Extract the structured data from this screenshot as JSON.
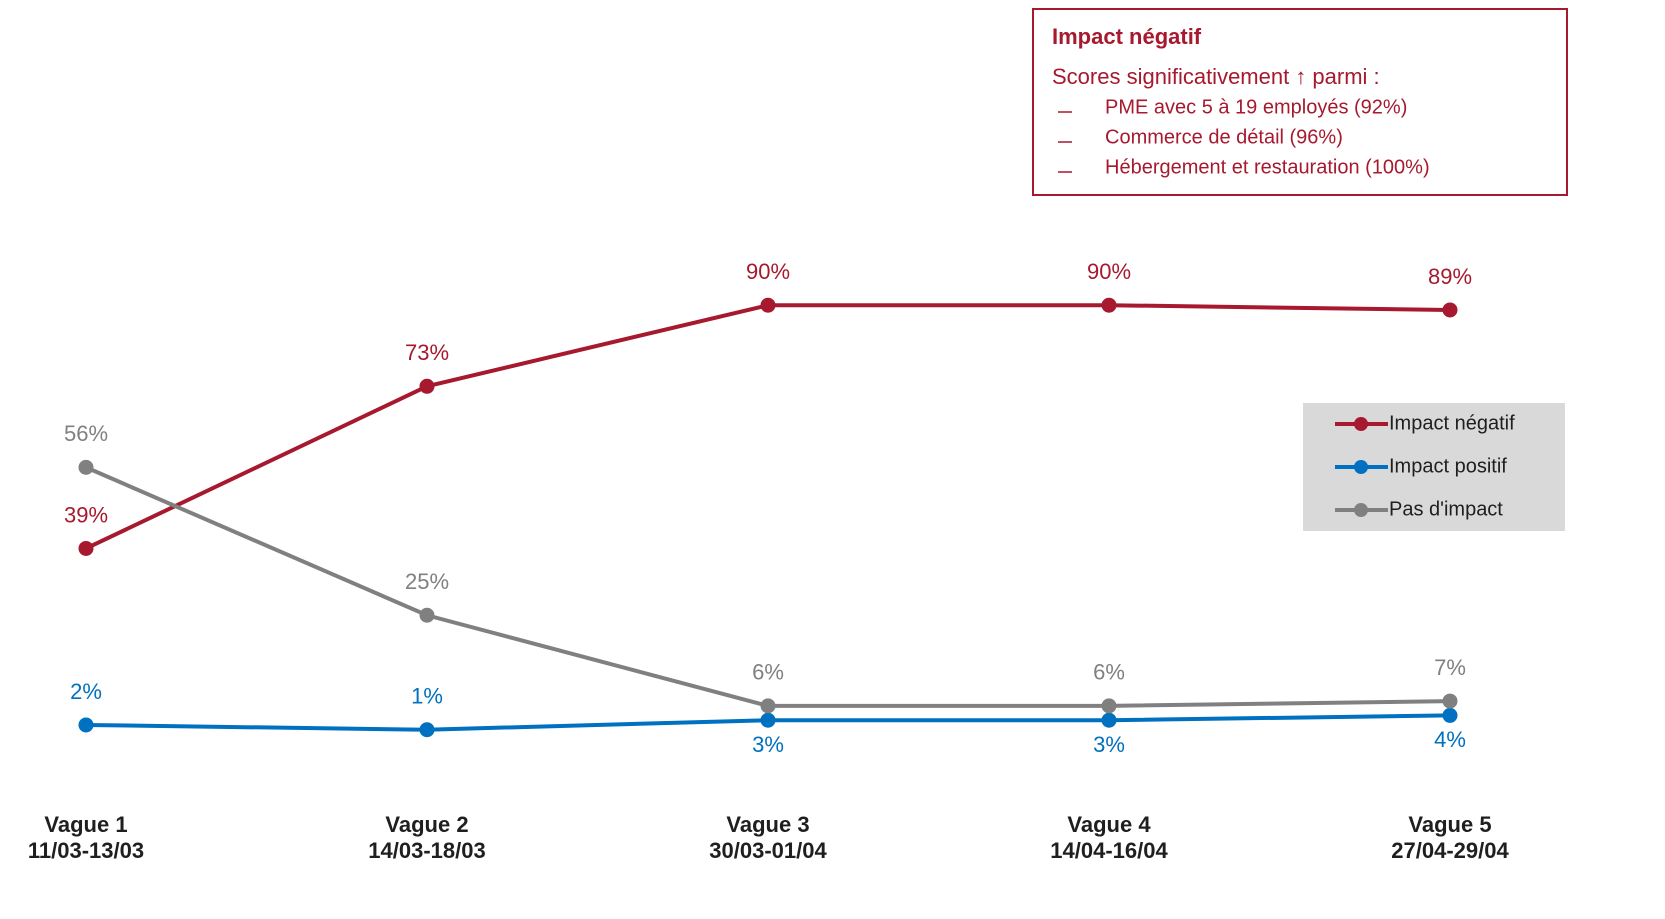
{
  "chart_data": {
    "type": "line",
    "categories": [
      "Vague 1",
      "Vague 2",
      "Vague 3",
      "Vague 4",
      "Vague 5"
    ],
    "category_dates": [
      "11/03-13/03",
      "14/03-18/03",
      "30/03-01/04",
      "14/04-16/04",
      "27/04-29/04"
    ],
    "ylim": [
      0,
      100
    ],
    "series": [
      {
        "name": "Impact négatif",
        "color": "#a6192e",
        "values": [
          39,
          73,
          90,
          90,
          89
        ],
        "value_labels": [
          "39%",
          "73%",
          "90%",
          "90%",
          "89%"
        ]
      },
      {
        "name": "Impact positif",
        "color": "#0070c0",
        "values": [
          2,
          1,
          3,
          3,
          4
        ],
        "value_labels": [
          "2%",
          "1%",
          "3%",
          "3%",
          "4%"
        ]
      },
      {
        "name": "Pas d'impact",
        "color": "#808080",
        "values": [
          56,
          25,
          6,
          6,
          7
        ],
        "value_labels": [
          "56%",
          "25%",
          "6%",
          "6%",
          "7%"
        ]
      }
    ],
    "annotation": {
      "title": "Impact négatif",
      "subtitle": "Scores significativement ↑ parmi :",
      "items": [
        "PME avec 5 à 19 employés (92%)",
        "Commerce de détail (96%)",
        "Hébergement et restauration (100%)"
      ]
    }
  }
}
